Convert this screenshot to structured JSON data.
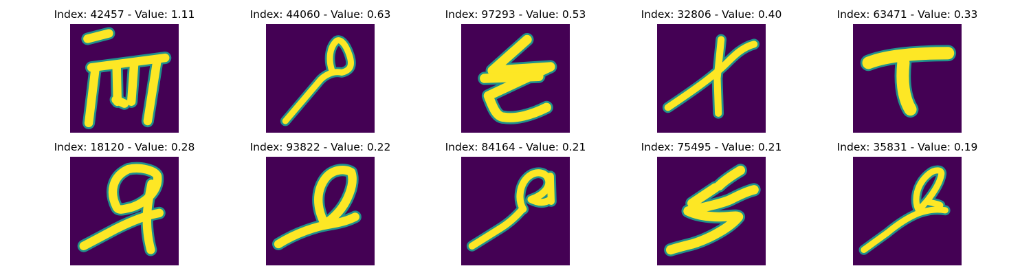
{
  "figure": {
    "background_color": "#ffffff",
    "colormap": {
      "low": "#440154",
      "mid": "#21918c",
      "high": "#fde725"
    },
    "panels": [
      {
        "title": "Index: 42457 - Value: 1.11",
        "index": 42457,
        "value": 1.11
      },
      {
        "title": "Index: 44060 - Value: 0.63",
        "index": 44060,
        "value": 0.63
      },
      {
        "title": "Index: 97293 - Value: 0.53",
        "index": 97293,
        "value": 0.53
      },
      {
        "title": "Index: 32806 - Value: 0.40",
        "index": 32806,
        "value": 0.4
      },
      {
        "title": "Index: 63471 - Value: 0.33",
        "index": 63471,
        "value": 0.33
      },
      {
        "title": "Index: 18120 - Value: 0.28",
        "index": 18120,
        "value": 0.28
      },
      {
        "title": "Index: 93822 - Value: 0.22",
        "index": 93822,
        "value": 0.22
      },
      {
        "title": "Index: 84164 - Value: 0.21",
        "index": 84164,
        "value": 0.21
      },
      {
        "title": "Index: 75495 - Value: 0.21",
        "index": 75495,
        "value": 0.21
      },
      {
        "title": "Index: 35831 - Value: 0.19",
        "index": 35831,
        "value": 0.19
      }
    ]
  }
}
